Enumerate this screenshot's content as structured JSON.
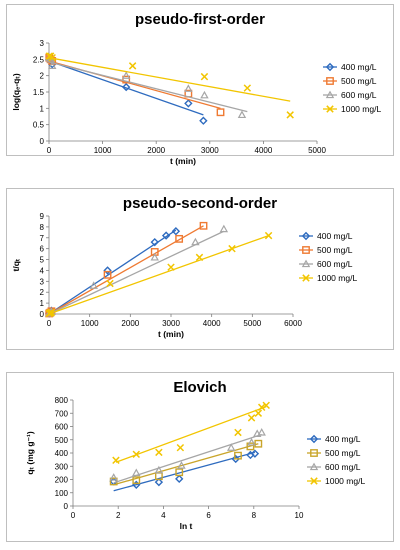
{
  "chart_data": [
    {
      "type": "scatter",
      "title": "pseudo-first-order",
      "xlabel": "t (min)",
      "ylabel": "log(qₑ-qₜ)",
      "xlim": [
        0,
        5000
      ],
      "ylim": [
        0,
        3
      ],
      "xticks": [
        0,
        1000,
        2000,
        3000,
        4000,
        5000
      ],
      "yticks": [
        0,
        0.5,
        1,
        1.5,
        2,
        2.5,
        3
      ],
      "ytick_labels": [
        "0",
        "0.5",
        "1",
        "1.5",
        "2",
        "2.5",
        "3"
      ],
      "legend_position": "right",
      "series": [
        {
          "name": "400 mg/L",
          "marker": "diamond",
          "color": "#2e6bbf",
          "points": [
            [
              5,
              2.5
            ],
            [
              30,
              2.45
            ],
            [
              60,
              2.35
            ],
            [
              1440,
              1.65
            ],
            [
              2600,
              1.15
            ],
            [
              2880,
              0.62
            ]
          ],
          "fit": [
            [
              0,
              2.45
            ],
            [
              2880,
              0.8
            ]
          ]
        },
        {
          "name": "500 mg/L",
          "marker": "square",
          "color": "#ef7a32",
          "points": [
            [
              5,
              2.55
            ],
            [
              30,
              2.5
            ],
            [
              60,
              2.45
            ],
            [
              1440,
              1.88
            ],
            [
              2600,
              1.45
            ],
            [
              3200,
              0.88
            ]
          ],
          "fit": [
            [
              0,
              2.45
            ],
            [
              3200,
              1.0
            ]
          ]
        },
        {
          "name": "600 mg/L",
          "marker": "triangle",
          "color": "#a6a6a6",
          "points": [
            [
              5,
              2.55
            ],
            [
              30,
              2.5
            ],
            [
              60,
              2.3
            ],
            [
              1440,
              2.0
            ],
            [
              2600,
              1.6
            ],
            [
              2900,
              1.4
            ],
            [
              3600,
              0.8
            ]
          ],
          "fit": [
            [
              0,
              2.42
            ],
            [
              3700,
              0.9
            ]
          ]
        },
        {
          "name": "1000 mg/L",
          "marker": "x",
          "color": "#f2c500",
          "points": [
            [
              5,
              2.6
            ],
            [
              30,
              2.6
            ],
            [
              60,
              2.55
            ],
            [
              1560,
              2.3
            ],
            [
              2900,
              1.97
            ],
            [
              3700,
              1.62
            ],
            [
              4500,
              0.8
            ]
          ],
          "fit": [
            [
              0,
              2.55
            ],
            [
              4500,
              1.22
            ]
          ]
        }
      ]
    },
    {
      "type": "scatter",
      "title": "pseudo-second-order",
      "xlabel": "t (min)",
      "ylabel": "t/qₜ",
      "xlim": [
        0,
        6000
      ],
      "ylim": [
        0,
        9
      ],
      "xticks": [
        0,
        1000,
        2000,
        3000,
        4000,
        5000,
        6000
      ],
      "yticks": [
        0,
        1,
        2,
        3,
        4,
        5,
        6,
        7,
        8,
        9
      ],
      "ytick_labels": [
        "0",
        "1",
        "2",
        "3",
        "4",
        "5",
        "6",
        "7",
        "8",
        "9"
      ],
      "legend_position": "right",
      "series": [
        {
          "name": "400 mg/L",
          "marker": "diamond",
          "color": "#2e6bbf",
          "points": [
            [
              5,
              0.05
            ],
            [
              30,
              0.15
            ],
            [
              60,
              0.3
            ],
            [
              1440,
              4.0
            ],
            [
              2600,
              6.6
            ],
            [
              2880,
              7.2
            ],
            [
              3120,
              7.6
            ]
          ],
          "fit": [
            [
              0,
              0.0
            ],
            [
              3120,
              7.7
            ]
          ]
        },
        {
          "name": "500 mg/L",
          "marker": "square",
          "color": "#ef7a32",
          "points": [
            [
              5,
              0.05
            ],
            [
              30,
              0.12
            ],
            [
              60,
              0.25
            ],
            [
              1440,
              3.6
            ],
            [
              2600,
              5.7
            ],
            [
              3200,
              6.9
            ],
            [
              3800,
              8.1
            ]
          ],
          "fit": [
            [
              0,
              0.0
            ],
            [
              3800,
              8.1
            ]
          ]
        },
        {
          "name": "600 mg/L",
          "marker": "triangle",
          "color": "#a6a6a6",
          "points": [
            [
              5,
              0.05
            ],
            [
              30,
              0.1
            ],
            [
              60,
              0.2
            ],
            [
              1100,
              2.6
            ],
            [
              2600,
              5.2
            ],
            [
              3600,
              6.6
            ],
            [
              4300,
              7.8
            ]
          ],
          "fit": [
            [
              0,
              0.0
            ],
            [
              4300,
              7.6
            ]
          ]
        },
        {
          "name": "1000 mg/L",
          "marker": "x",
          "color": "#f2c500",
          "points": [
            [
              5,
              0.05
            ],
            [
              30,
              0.1
            ],
            [
              60,
              0.15
            ],
            [
              1500,
              2.8
            ],
            [
              3000,
              4.3
            ],
            [
              3700,
              5.2
            ],
            [
              4500,
              6.0
            ],
            [
              5400,
              7.2
            ]
          ],
          "fit": [
            [
              0,
              0.0
            ],
            [
              5400,
              7.2
            ]
          ]
        }
      ]
    },
    {
      "type": "scatter",
      "title": "Elovich",
      "xlabel": "ln t",
      "ylabel": "qₜ (mg g⁻¹)",
      "xlim": [
        0,
        10
      ],
      "ylim": [
        0,
        800
      ],
      "xticks": [
        0,
        2,
        4,
        6,
        8,
        10
      ],
      "yticks": [
        0,
        100,
        200,
        300,
        400,
        500,
        600,
        700,
        800
      ],
      "ytick_labels": [
        "0",
        "100",
        "200",
        "300",
        "400",
        "500",
        "600",
        "700",
        "800"
      ],
      "legend_position": "right",
      "series": [
        {
          "name": "400 mg/L",
          "marker": "diamond",
          "color": "#2e6bbf",
          "points": [
            [
              1.8,
              185
            ],
            [
              2.8,
              160
            ],
            [
              3.8,
              180
            ],
            [
              4.7,
              205
            ],
            [
              7.2,
              355
            ],
            [
              7.85,
              385
            ],
            [
              8.05,
              395
            ]
          ],
          "fit": [
            [
              1.8,
              115
            ],
            [
              8.05,
              405
            ]
          ]
        },
        {
          "name": "500 mg/L",
          "marker": "square",
          "color": "#c9a52a",
          "points": [
            [
              1.8,
              185
            ],
            [
              2.8,
              195
            ],
            [
              3.8,
              225
            ],
            [
              4.7,
              255
            ],
            [
              7.3,
              380
            ],
            [
              7.85,
              450
            ],
            [
              8.2,
              470
            ]
          ],
          "fit": [
            [
              1.8,
              160
            ],
            [
              8.2,
              470
            ]
          ]
        },
        {
          "name": "600 mg/L",
          "marker": "triangle",
          "color": "#a6a6a6",
          "points": [
            [
              1.8,
              215
            ],
            [
              2.8,
              250
            ],
            [
              3.8,
              270
            ],
            [
              4.8,
              305
            ],
            [
              7.0,
              440
            ],
            [
              7.9,
              480
            ],
            [
              8.15,
              545
            ],
            [
              8.35,
              555
            ]
          ],
          "fit": [
            [
              1.8,
              175
            ],
            [
              8.35,
              540
            ]
          ]
        },
        {
          "name": "1000 mg/L",
          "marker": "x",
          "color": "#f2c500",
          "points": [
            [
              1.9,
              345
            ],
            [
              2.8,
              390
            ],
            [
              3.8,
              405
            ],
            [
              4.75,
              440
            ],
            [
              7.3,
              555
            ],
            [
              7.9,
              665
            ],
            [
              8.2,
              700
            ],
            [
              8.35,
              745
            ],
            [
              8.55,
              760
            ]
          ],
          "fit": [
            [
              1.9,
              330
            ],
            [
              8.55,
              750
            ]
          ]
        }
      ]
    }
  ]
}
